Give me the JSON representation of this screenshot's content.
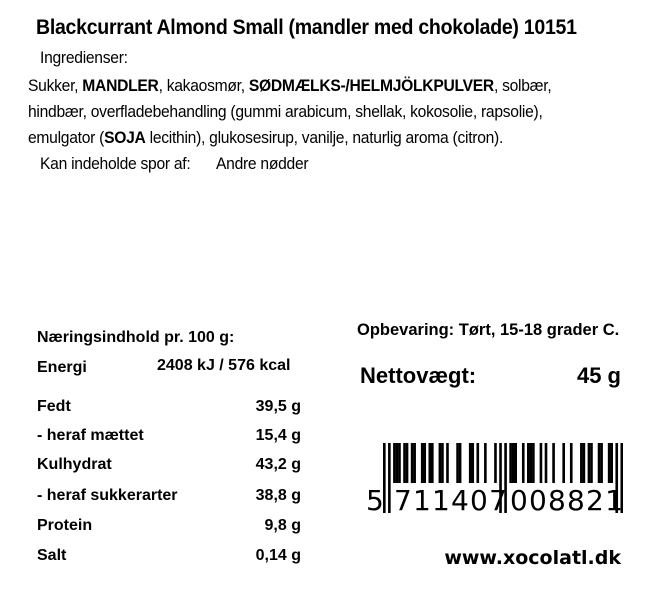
{
  "title": "Blackcurrant Almond Small (mandler med chokolade) 10151",
  "ingredients_label": "Ingredienser:",
  "ingredients_lines": [
    [
      {
        "t": "Sukker, ",
        "b": false
      },
      {
        "t": "MANDLER",
        "b": true
      },
      {
        "t": ", kakaosmør, ",
        "b": false
      },
      {
        "t": "SØDMÆLKS-/HELMJÖLKPULVER",
        "b": true
      },
      {
        "t": ", solbær,",
        "b": false
      }
    ],
    [
      {
        "t": "hindbær, overfladebehandling (gummi arabicum, shellak, kokosolie, rapsolie),",
        "b": false
      }
    ],
    [
      {
        "t": "emulgator (",
        "b": false
      },
      {
        "t": "SOJA",
        "b": true
      },
      {
        "t": " lecithin), glukosesirup, vanilje, naturlig aroma (citron).",
        "b": false
      }
    ]
  ],
  "traces_label": "Kan indeholde spor af:",
  "traces_value": "Andre nødder",
  "nutrition": {
    "heading": "Næringsindhold pr. 100 g:",
    "energy_label": "Energi",
    "energy_value": "2408 kJ / 576 kcal",
    "rows": [
      {
        "label": "Fedt",
        "value": "39,5 g"
      },
      {
        "label": "- heraf mættet",
        "value": "15,4 g"
      },
      {
        "label": "Kulhydrat",
        "value": "43,2 g"
      },
      {
        "label": "- heraf sukkerarter",
        "value": "38,8 g"
      },
      {
        "label": "Protein",
        "value": "9,8 g"
      },
      {
        "label": "Salt",
        "value": "0,14 g"
      }
    ]
  },
  "storage": "Opbevaring: Tørt, 15-18 grader C.",
  "net_weight_label": "Nettovægt:",
  "net_weight_value": "45 g",
  "barcode": {
    "first": "5",
    "left": "711407",
    "right": "008821"
  },
  "website": "www.xocolatl.dk"
}
